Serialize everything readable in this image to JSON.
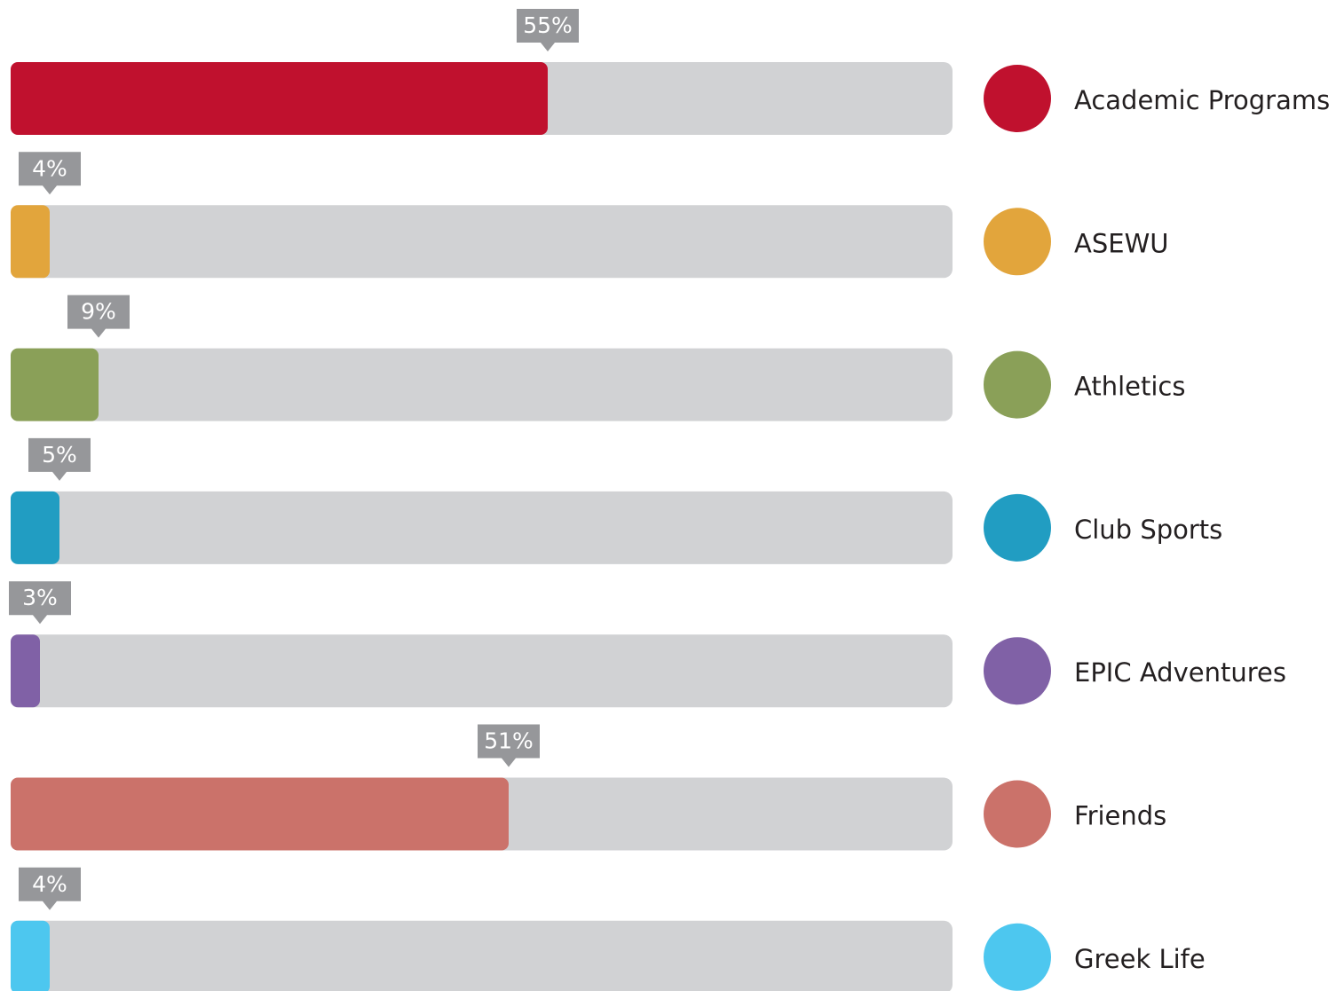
{
  "chart_data": {
    "type": "progress-bar",
    "categories": [
      "Academic Programs",
      "ASEWU",
      "Athletics",
      "Club Sports",
      "EPIC Adventures",
      "Friends",
      "Greek Life"
    ],
    "values": [
      55,
      4,
      9,
      5,
      3,
      51,
      4
    ],
    "value_labels": [
      "55%",
      "4%",
      "9%",
      "5%",
      "3%",
      "51%",
      "4%"
    ],
    "colors": [
      "#c0112e",
      "#e2a53c",
      "#8aa058",
      "#219dc2",
      "#8061a6",
      "#cb726a",
      "#4dc7ef"
    ],
    "xlim": [
      0,
      100
    ]
  }
}
